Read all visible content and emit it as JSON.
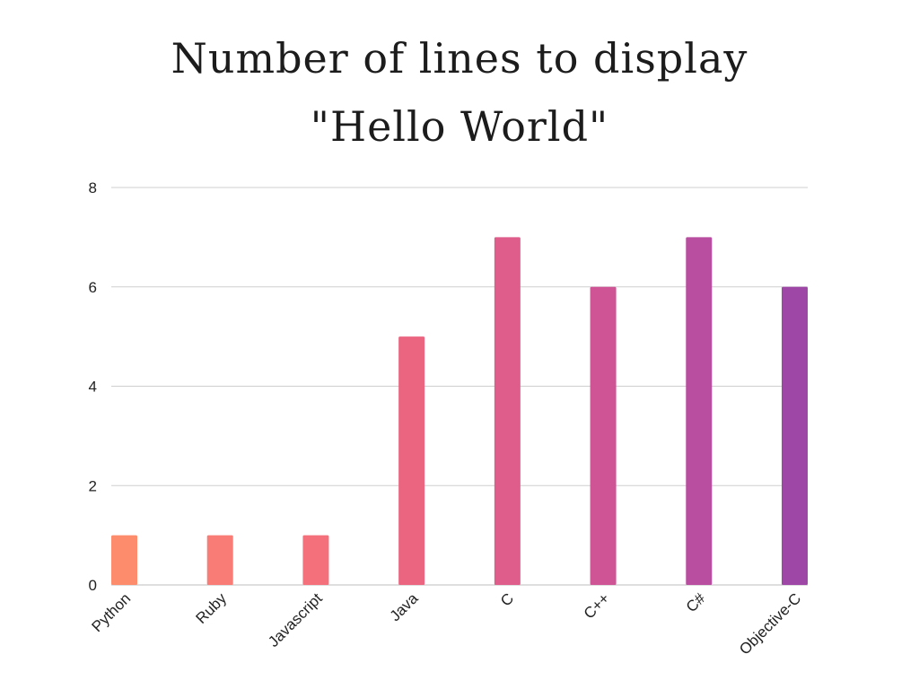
{
  "chart_data": {
    "type": "bar",
    "title": "Number of lines to display",
    "subtitle": "\"Hello World\"",
    "xlabel": "",
    "ylabel": "",
    "ylim": [
      0,
      8
    ],
    "yticks": [
      "0",
      "2",
      "4",
      "6",
      "8"
    ],
    "grid": true,
    "legend": "none",
    "categories": [
      "Python",
      "Ruby",
      "Javascript",
      "Java",
      "C",
      "C++",
      "C#",
      "Objective-C"
    ],
    "values": [
      1,
      1,
      1,
      5,
      7,
      6,
      7,
      6
    ],
    "colors": [
      "#fd8c6c",
      "#f97c77",
      "#f4707b",
      "#ec6580",
      "#de5d8b",
      "#cf5496",
      "#b94d9f",
      "#9f47a7"
    ]
  }
}
